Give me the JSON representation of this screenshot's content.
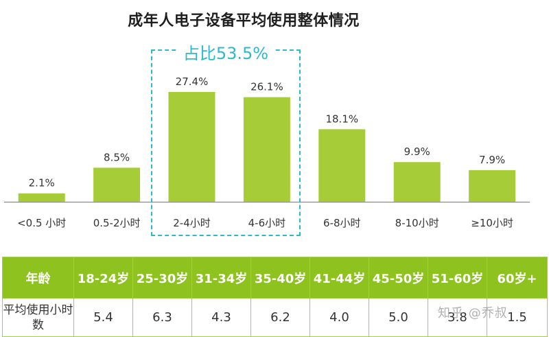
{
  "title": "成年人电子设备平均使用整体情况",
  "highlight_label": "占比53.5%",
  "chart_data": {
    "type": "bar",
    "title": "成年人电子设备平均使用整体情况",
    "categories": [
      "<0.5 小时",
      "0.5-2小时",
      "2-4小时",
      "4-6小时",
      "6-8小时",
      "8-10小时",
      "≥10小时"
    ],
    "values": [
      2.1,
      8.5,
      27.4,
      26.1,
      18.1,
      9.9,
      7.9
    ],
    "value_labels": [
      "2.1%",
      "8.5%",
      "27.4%",
      "26.1%",
      "18.1%",
      "9.9%",
      "7.9%"
    ],
    "unit": "%",
    "ylim": [
      0,
      30
    ],
    "grid": false,
    "bar_color": "#a6cd37",
    "highlight_color": "#2bb9cc"
  },
  "table": {
    "header_label": "年龄",
    "row_label": "平均使用小时数",
    "ages": [
      "18-24岁",
      "25-30岁",
      "31-34岁",
      "35-40岁",
      "41-44岁",
      "45-50岁",
      "51-60岁",
      "60岁+"
    ],
    "hours": [
      "5.4",
      "6.3",
      "4.3",
      "6.2",
      "4.0",
      "5.0",
      "3.8",
      "1.5"
    ],
    "header_color": "#8dc21f",
    "border_color": "#9fd04a"
  },
  "watermark": "知乎 @乔叔"
}
